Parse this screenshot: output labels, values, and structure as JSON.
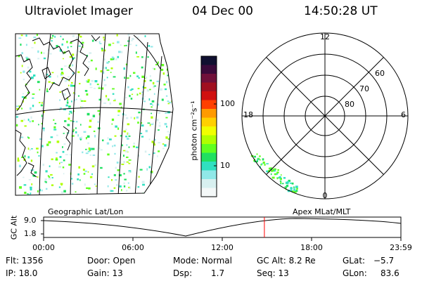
{
  "header": {
    "instrument": "Ultraviolet Imager",
    "date": "04 Dec 00",
    "time": "14:50:28 UT"
  },
  "colorbar": {
    "unit_label": "photon cm⁻²s⁻¹",
    "ticks": [
      "100",
      "10"
    ],
    "colors": [
      "#101030",
      "#3a0a3a",
      "#70103a",
      "#a01020",
      "#d01010",
      "#ff4000",
      "#ff9a00",
      "#ffd000",
      "#f0ff00",
      "#b0ff00",
      "#60ff20",
      "#20e060",
      "#30e0c0",
      "#90e8e8",
      "#d8f0f0",
      "#f4f8f8"
    ]
  },
  "polar": {
    "mlt_labels": {
      "top": "12",
      "left": "18",
      "right": "6",
      "bottom": "0"
    },
    "lat_labels": [
      "60",
      "70",
      "80"
    ]
  },
  "timeline": {
    "left_label": "Geographic Lat/Lon",
    "right_label": "Apex MLat/MLT",
    "axis_title": "GC Alt",
    "y_ticks": [
      "9.0",
      "1.8"
    ],
    "x_ticks": [
      "00:00",
      "06:00",
      "12:00",
      "18:00",
      "23:59"
    ],
    "current_time_fraction": 0.618
  },
  "status": {
    "flt": "Flt: 1356",
    "ip": "IP: 18.0",
    "door": "Door: Open",
    "gain": "Gain: 13",
    "mode": "Mode: Normal",
    "dsp": "Dsp:",
    "dsp_value": "1.7",
    "gc_alt": "GC Alt: 8.2 Re",
    "seq": "Seq: 13",
    "glat": "GLat:",
    "glat_value": "−5.7",
    "glon": "GLon:",
    "glon_value": "83.6"
  }
}
